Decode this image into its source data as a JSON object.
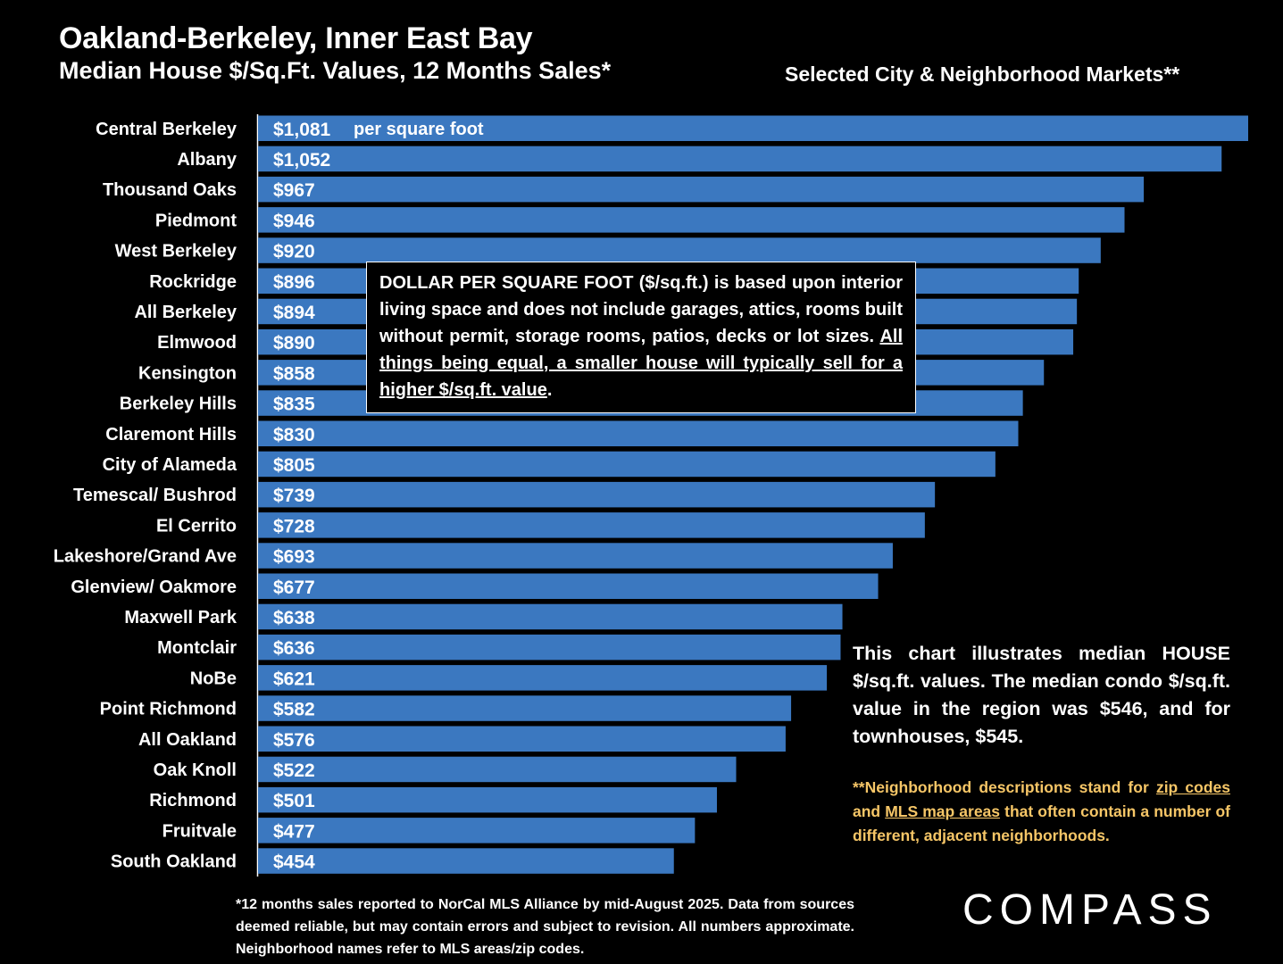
{
  "header": {
    "title": "Oakland-Berkeley, Inner East Bay",
    "subtitle": "Median House $/Sq.Ft. Values, 12 Months Sales*",
    "markets_label": "Selected City & Neighborhood Markets**"
  },
  "chart_data": {
    "type": "bar",
    "orientation": "horizontal",
    "categories": [
      "Central Berkeley",
      "Albany",
      "Thousand Oaks",
      "Piedmont",
      "West Berkeley",
      "Rockridge",
      "All Berkeley",
      "Elmwood",
      "Kensington",
      "Berkeley Hills",
      "Claremont Hills",
      "City of Alameda",
      "Temescal/ Bushrod",
      "El Cerrito",
      "Lakeshore/Grand Ave",
      "Glenview/ Oakmore",
      "Maxwell Park",
      "Montclair",
      "NoBe",
      "Point Richmond",
      "All Oakland",
      "Oak Knoll",
      "Richmond",
      "Fruitvale",
      "South Oakland"
    ],
    "values": [
      1081,
      1052,
      967,
      946,
      920,
      896,
      894,
      890,
      858,
      835,
      830,
      805,
      739,
      728,
      693,
      677,
      638,
      636,
      621,
      582,
      576,
      522,
      501,
      477,
      454
    ],
    "value_labels": [
      "$1,081",
      "$1,052",
      "$967",
      "$946",
      "$920",
      "$896",
      "$894",
      "$890",
      "$858",
      "$835",
      "$830",
      "$805",
      "$739",
      "$728",
      "$693",
      "$677",
      "$638",
      "$636",
      "$621",
      "$582",
      "$576",
      "$522",
      "$501",
      "$477",
      "$454"
    ],
    "first_bar_unit_label": "per square foot",
    "bar_color": "#3b78c0"
  },
  "callout": {
    "text_plain": "DOLLAR PER SQUARE FOOT ($/sq.ft.) is based upon interior living space and does not include garages, attics, rooms built without permit, storage rooms, patios, decks or lot sizes. ",
    "text_underlined": "All things being equal, a smaller house will typically sell for a higher $/sq.ft. value",
    "text_end": "."
  },
  "note": {
    "text": "This chart illustrates median HOUSE $/sq.ft. values. The median condo $/sq.ft. value in the region was $546, and for townhouses, $545.",
    "desc_part1": "**Neighborhood descriptions stand for ",
    "desc_link1": "zip codes",
    "desc_part2": " and ",
    "desc_link2": "MLS map areas",
    "desc_part3": " that often contain a number of different, adjacent neighborhoods.",
    "desc_color": "#f6c667"
  },
  "footnote": "*12 months sales reported to NorCal MLS Alliance by mid-August 2025. Data from sources deemed reliable, but may contain errors and subject to revision. All numbers approximate. Neighborhood names refer to MLS areas/zip codes.",
  "logo": "COMPASS"
}
